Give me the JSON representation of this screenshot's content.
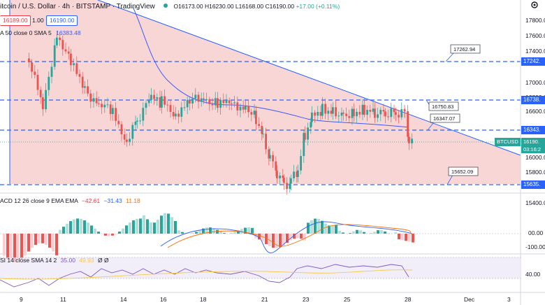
{
  "header": {
    "symbol_title": "itcoin / U.S. Dollar · 4h · BITSTAMP · TradingView",
    "ohlc": {
      "o": "O16173.00",
      "h": "H16230.00",
      "l": "L16168.00",
      "c": "C16190.00",
      "change": "+17.00 (+0.11%)"
    },
    "sell_price": "16189.00",
    "spread": "1.00",
    "buy_price": "16190.00",
    "sma_legend": "A 50 close 0 SMA 5",
    "sma_value": "16383.48"
  },
  "price_axis": {
    "ticks": [
      "17800.00",
      "17600.00",
      "17400.00",
      "17000.00",
      "16800.00",
      "16600.00",
      "16000.00",
      "15800.00",
      "15400.00"
    ],
    "badges": [
      {
        "label": "17242.",
        "color": "#2962ff"
      },
      {
        "label": "16738.",
        "color": "#2962ff"
      },
      {
        "label": "16343.",
        "color": "#2962ff"
      },
      {
        "label": "15635.",
        "color": "#2962ff"
      }
    ],
    "current": {
      "symbol": "BTCUSD",
      "price": "16190.",
      "countdown": "03:16:2"
    }
  },
  "annotations": [
    "17262.94",
    "16750.83",
    "16347.07",
    "15652.09"
  ],
  "macd": {
    "legend": "ACD 12 26 close 9 EMA EMA",
    "v1": "−42.61",
    "v2": "−31.43",
    "v3": "11.18",
    "ticks": [
      "00.00",
      "-100.00"
    ]
  },
  "rsi": {
    "legend": "SI 14 close SMA 14 2",
    "v1": "35.00",
    "v2": "49.93",
    "v3": "Ø Ø",
    "ticks": [
      "40.00"
    ]
  },
  "time_axis": [
    "9",
    "11",
    "14",
    "16",
    "18",
    "21",
    "23",
    "25",
    "28",
    "Dec",
    "3"
  ],
  "colors": {
    "up": "#26a69a",
    "down": "#ef5350",
    "zone": "#f8d0d0",
    "line": "#2962ff",
    "sma": "#3d5afe"
  },
  "icons": [
    "gear-icon",
    "market-status-dot"
  ]
}
